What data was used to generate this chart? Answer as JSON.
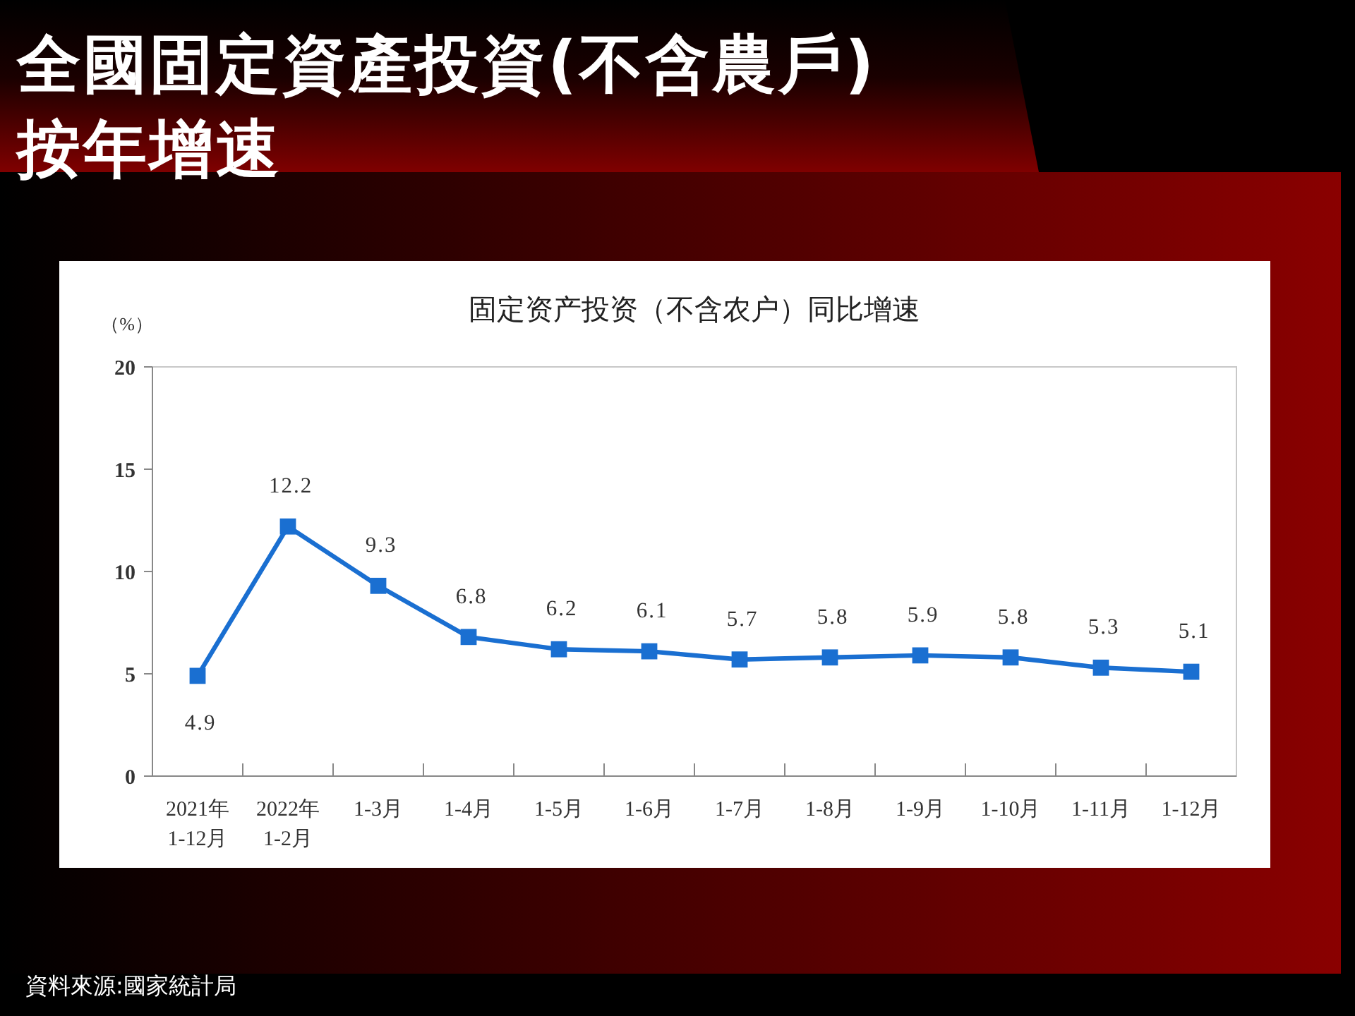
{
  "chart_data": {
    "type": "line",
    "title": "全國固定資產投資(不含農戶)\n按年增速",
    "subtitle": "固定资产投资（不含农户）同比增速",
    "ylabel": "（%）",
    "categories": [
      "2021年\n1-12月",
      "2022年\n1-2月",
      "1-3月",
      "1-4月",
      "1-5月",
      "1-6月",
      "1-7月",
      "1-8月",
      "1-9月",
      "1-10月",
      "1-11月",
      "1-12月"
    ],
    "series": [
      {
        "color": "#1a6fd1",
        "values": [
          4.9,
          12.2,
          9.3,
          6.8,
          6.2,
          6.1,
          5.7,
          5.8,
          5.9,
          5.8,
          5.3,
          5.1
        ]
      }
    ],
    "ylim": [
      0,
      20
    ],
    "yticks": [
      0,
      5,
      10,
      15,
      20
    ],
    "marker": "square",
    "line_style": "solid",
    "data_labels": true,
    "annotations": [
      "資料來源:國家統計局"
    ]
  }
}
